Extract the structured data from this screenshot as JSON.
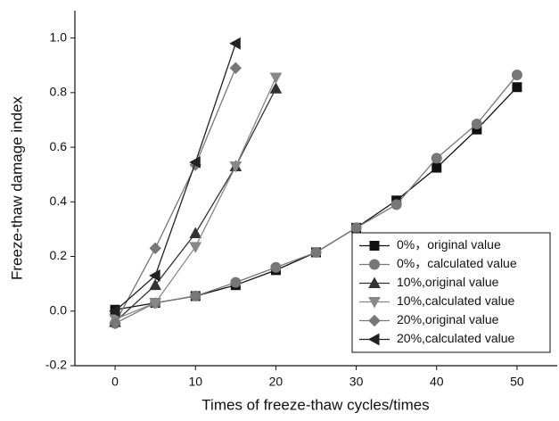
{
  "chart_data": {
    "type": "line",
    "xlabel": "Times of freeze-thaw cycles/times",
    "ylabel": "Freeze-thaw damage index",
    "xlim": [
      -5,
      55
    ],
    "xticks": [
      0,
      10,
      20,
      30,
      40,
      50
    ],
    "ylim": [
      -0.2,
      1.1
    ],
    "yticks": [
      -0.2,
      {
        "value": 0,
        "label": "0.0"
      },
      0.2,
      0.4,
      0.6,
      0.8,
      {
        "value": 1,
        "label": "1.0"
      }
    ],
    "legend": "lower right",
    "series": [
      {
        "name": "0%，original value",
        "color": "#111111",
        "marker": "square",
        "x": [
          0,
          5,
          10,
          15,
          20,
          25,
          30,
          35,
          40,
          45,
          50
        ],
        "values": [
          0.005,
          0.03,
          0.055,
          0.095,
          0.15,
          0.215,
          0.305,
          0.405,
          0.525,
          0.665,
          0.82
        ]
      },
      {
        "name": "0%，calculated value",
        "color": "#777777",
        "marker": "circle",
        "x": [
          0,
          5,
          10,
          15,
          20,
          25,
          30,
          35,
          40,
          45,
          50
        ],
        "values": [
          -0.045,
          0.03,
          0.055,
          0.105,
          0.16,
          0.215,
          0.305,
          0.39,
          0.56,
          0.685,
          0.865
        ]
      },
      {
        "name": "10%,original value",
        "color": "#333333",
        "marker": "triangle-up",
        "x": [
          0,
          5,
          10,
          15,
          20
        ],
        "values": [
          -0.04,
          0.095,
          0.285,
          0.53,
          0.815
        ]
      },
      {
        "name": "10%,calculated value",
        "color": "#888888",
        "marker": "triangle-down",
        "x": [
          0,
          5,
          10,
          15,
          20
        ],
        "values": [
          -0.03,
          0.03,
          0.235,
          0.53,
          0.855
        ]
      },
      {
        "name": "20%,original value",
        "color": "#777777",
        "marker": "diamond",
        "x": [
          0,
          5,
          10,
          15
        ],
        "values": [
          -0.045,
          0.23,
          0.535,
          0.89
        ]
      },
      {
        "name": "20%,calculated value",
        "color": "#222222",
        "marker": "triangle-left",
        "x": [
          0,
          5,
          10,
          15
        ],
        "values": [
          0.0,
          0.13,
          0.545,
          0.98
        ]
      }
    ]
  }
}
